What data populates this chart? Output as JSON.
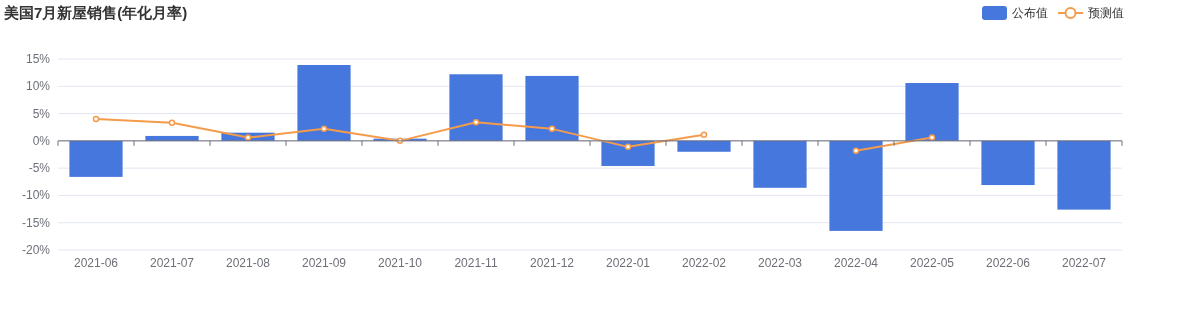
{
  "chart_data": {
    "type": "bar",
    "title": "美国7月新屋销售(年化月率)",
    "categories": [
      "2021-06",
      "2021-07",
      "2021-08",
      "2021-09",
      "2021-10",
      "2021-11",
      "2021-12",
      "2022-01",
      "2022-02",
      "2022-03",
      "2022-04",
      "2022-05",
      "2022-06",
      "2022-07"
    ],
    "series": [
      {
        "name": "公布值",
        "color": "#4677dc",
        "values": [
          -6.6,
          0.9,
          1.5,
          13.9,
          0.4,
          12.2,
          11.9,
          -4.6,
          -2.0,
          -8.6,
          -16.5,
          10.6,
          -8.1,
          -12.6
        ]
      },
      {
        "name": "预测值",
        "type": "line",
        "color": "#f59b4c",
        "marker": "circle",
        "values": [
          4.0,
          3.3,
          0.6,
          2.2,
          0.0,
          3.4,
          2.2,
          -1.1,
          1.1,
          null,
          -1.8,
          0.6,
          null,
          null
        ]
      }
    ],
    "ylim": [
      -20,
      15
    ],
    "yticks": [
      {
        "value": -20,
        "label": "-20%"
      },
      {
        "value": -15,
        "label": "-15%"
      },
      {
        "value": -10,
        "label": "-10%"
      },
      {
        "value": -5,
        "label": "-5%"
      },
      {
        "value": 0,
        "label": "0%"
      },
      {
        "value": 5,
        "label": "5%"
      },
      {
        "value": 10,
        "label": "10%"
      },
      {
        "value": 15,
        "label": "15%"
      }
    ],
    "grid": "y",
    "legend": "top right"
  }
}
